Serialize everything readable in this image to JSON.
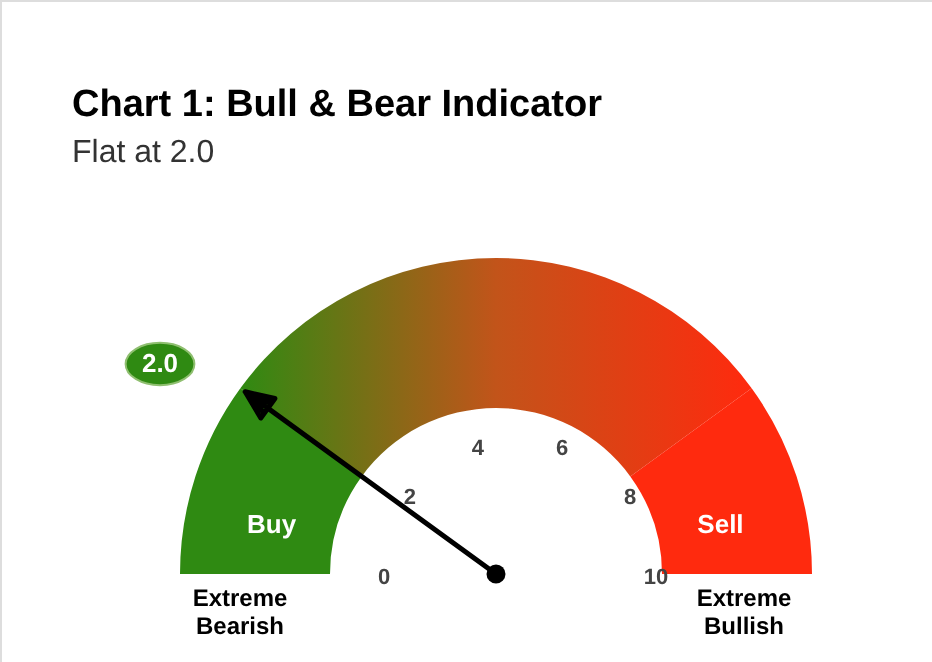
{
  "chart_data": {
    "type": "donut",
    "title": "Chart 1: Bull & Bear Indicator",
    "subtitle": "Flat at 2.0",
    "categories": [
      "Buy",
      null,
      "Sell"
    ],
    "values": [
      20,
      60,
      20
    ],
    "colors": [
      "#2f8a12",
      "#c2541a",
      "#ff2a0e"
    ],
    "needle": "Buy",
    "annotations": [
      "0",
      "2",
      "4",
      "6",
      "8",
      "10",
      "2.0",
      "Extreme Bearish",
      "Extreme Bullish"
    ]
  }
}
